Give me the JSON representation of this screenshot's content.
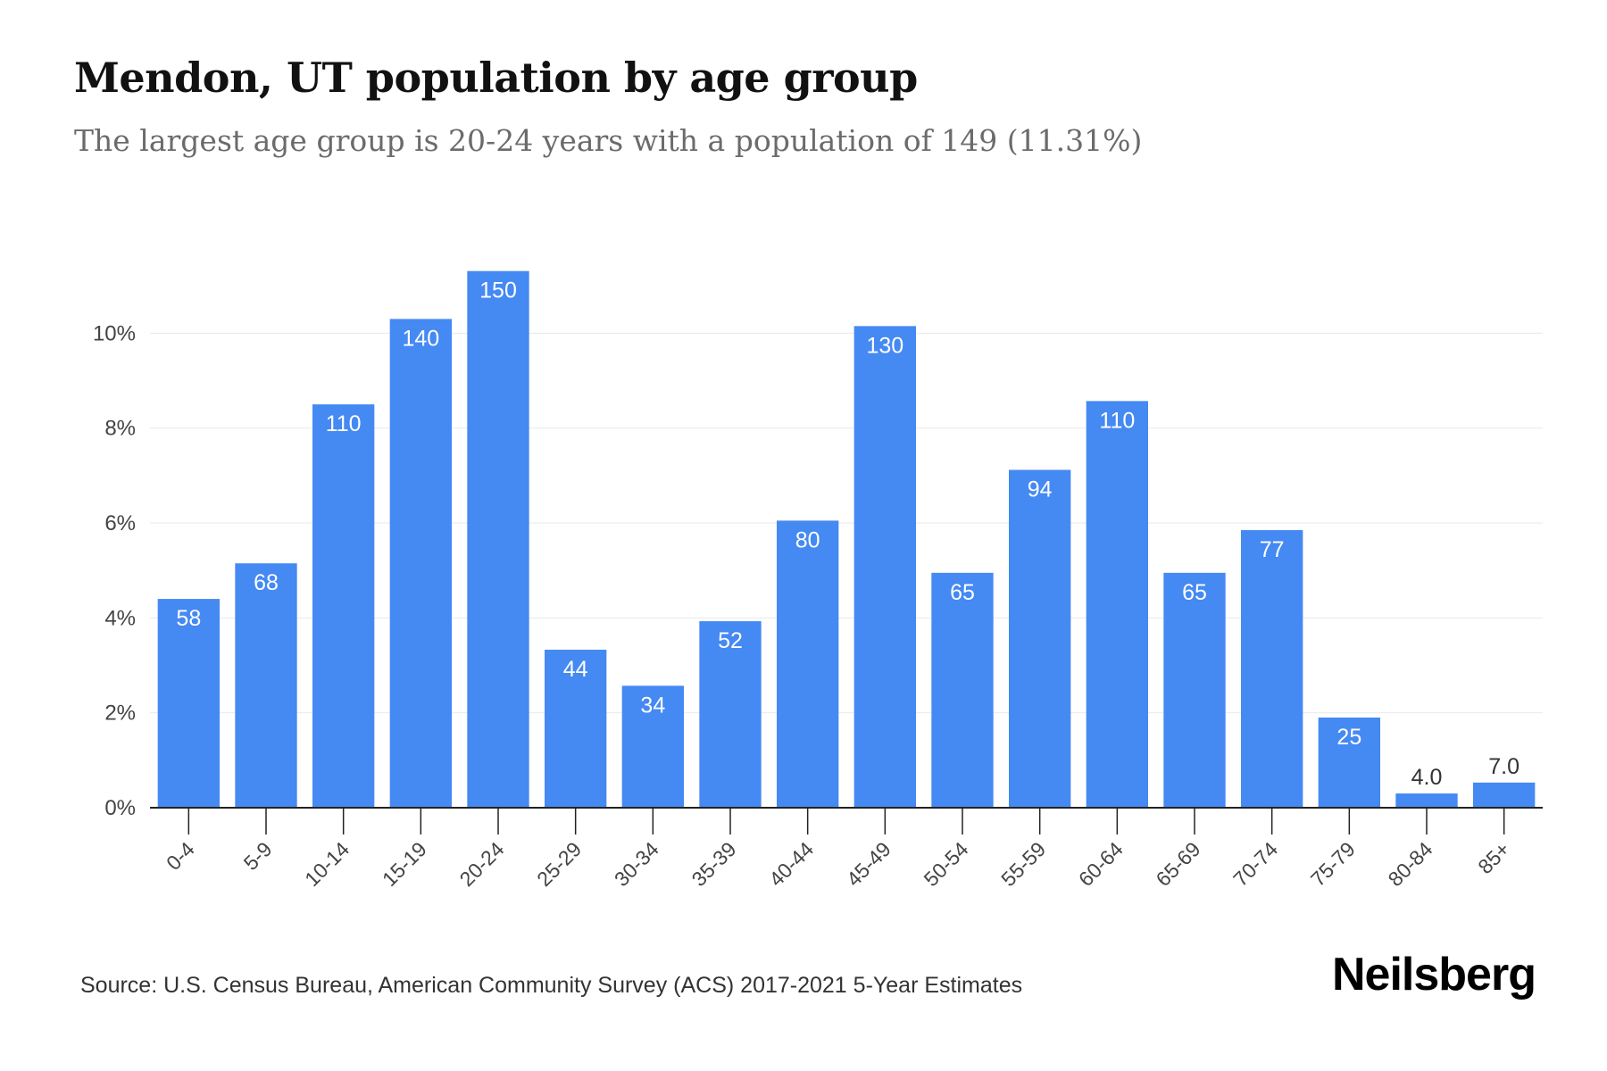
{
  "title": "Mendon, UT population by age group",
  "subtitle": "The largest age group is 20-24 years with a population of 149 (11.31%)",
  "source": "Source: U.S. Census Bureau, American Community Survey (ACS) 2017-2021 5-Year Estimates",
  "brand": "Neilsberg",
  "colors": {
    "bar": "#4589f3",
    "grid": "#e9e9e9",
    "axis": "#222222",
    "tick_text": "#444444",
    "label_text": "#ffffff"
  },
  "chart_data": {
    "type": "bar",
    "categories": [
      "0-4",
      "5-9",
      "10-14",
      "15-19",
      "20-24",
      "25-29",
      "30-34",
      "35-39",
      "40-44",
      "45-49",
      "50-54",
      "55-59",
      "60-64",
      "65-69",
      "70-74",
      "75-79",
      "80-84",
      "85+"
    ],
    "values": [
      4.4,
      5.15,
      8.5,
      10.3,
      11.31,
      3.33,
      2.57,
      3.93,
      6.05,
      10.15,
      4.95,
      7.12,
      8.57,
      4.95,
      5.85,
      1.9,
      0.3,
      0.53
    ],
    "data_labels": [
      "58",
      "68",
      "110",
      "140",
      "150",
      "44",
      "34",
      "52",
      "80",
      "130",
      "65",
      "94",
      "110",
      "65",
      "77",
      "25",
      "4.0",
      "7.0"
    ],
    "ylim": [
      0,
      12
    ],
    "yticks": [
      0,
      2,
      4,
      6,
      8,
      10
    ],
    "ytick_labels": [
      "0%",
      "2%",
      "4%",
      "6%",
      "8%",
      "10%"
    ],
    "grid": true,
    "xlabel": "",
    "ylabel": ""
  }
}
